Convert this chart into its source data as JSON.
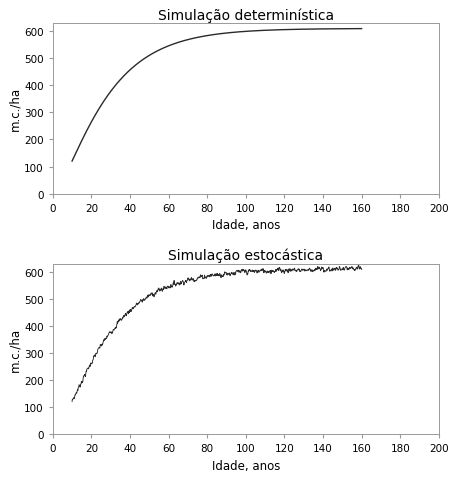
{
  "title_top": "Simulação determinística",
  "title_bottom": "Simulação estocástica",
  "xlabel": "Idade, anos",
  "ylabel": "m.c./ha",
  "xlim": [
    0,
    200
  ],
  "ylim": [
    0,
    630
  ],
  "xticks": [
    0,
    20,
    40,
    60,
    80,
    100,
    120,
    140,
    160,
    180,
    200
  ],
  "yticks": [
    0,
    100,
    200,
    300,
    400,
    500,
    600
  ],
  "det_x_start": 10,
  "det_x_end": 160,
  "det_y_asymptote": 610,
  "det_k": 0.045,
  "det_power": 1.6,
  "stoch_seed": 7,
  "stoch_noise_scale": 3.5,
  "stoch_smooth_window": 2,
  "line_color": "#2a2a2a",
  "background_color": "#ffffff",
  "title_fontsize": 10,
  "label_fontsize": 8.5,
  "tick_fontsize": 7.5,
  "linewidth_det": 1.0,
  "linewidth_sto": 0.65
}
